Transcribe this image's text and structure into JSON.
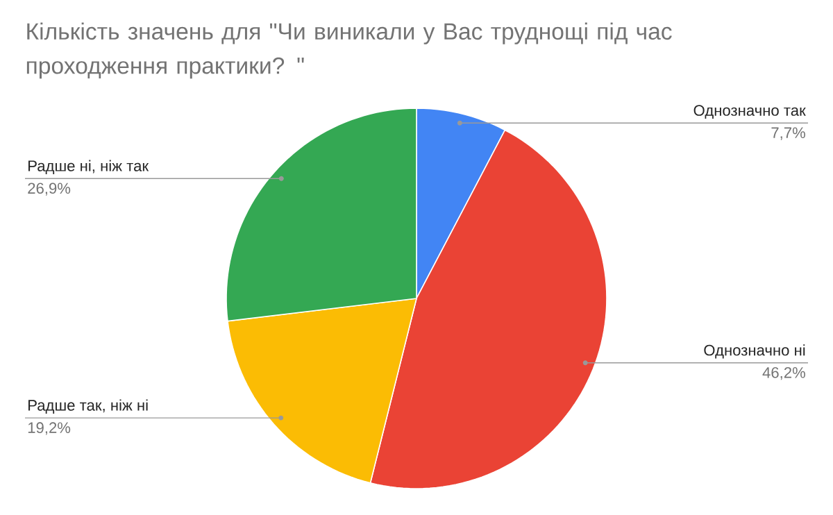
{
  "chart_data": {
    "type": "pie",
    "title": "Кількість значень для \"Чи виникали у Вас труднощі під час проходження практики? \"",
    "categories": [
      "Однозначно так",
      "Однозначно ні",
      "Радше так, ніж ні",
      "Радше ні, ніж так"
    ],
    "values": [
      7.7,
      46.2,
      19.2,
      26.9
    ],
    "colors": [
      "#4285f4",
      "#ea4335",
      "#fbbc04",
      "#34a853"
    ],
    "value_labels": [
      "7,7%",
      "46,2%",
      "19,2%",
      "26,9%"
    ]
  }
}
